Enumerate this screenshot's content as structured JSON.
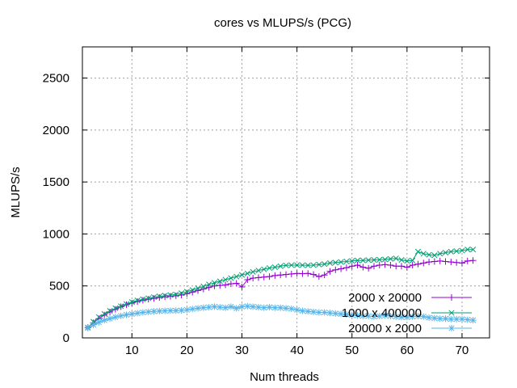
{
  "chart_data": {
    "type": "line",
    "title": "cores vs MLUPS/s (PCG)",
    "xlabel": "Num threads",
    "ylabel": "MLUPS/s",
    "xlim": [
      1,
      75
    ],
    "ylim": [
      0,
      2800
    ],
    "x_ticks": [
      10,
      20,
      30,
      40,
      50,
      60,
      70
    ],
    "y_ticks": [
      0,
      500,
      1000,
      1500,
      2000,
      2500
    ],
    "grid": true,
    "legend_position": "bottom-right",
    "x": [
      2,
      3,
      4,
      5,
      6,
      7,
      8,
      9,
      10,
      11,
      12,
      13,
      14,
      15,
      16,
      17,
      18,
      19,
      20,
      21,
      22,
      23,
      24,
      25,
      26,
      27,
      28,
      29,
      30,
      31,
      32,
      33,
      34,
      35,
      36,
      37,
      38,
      39,
      40,
      41,
      42,
      43,
      44,
      45,
      46,
      47,
      48,
      49,
      50,
      51,
      52,
      53,
      54,
      55,
      56,
      57,
      58,
      59,
      60,
      61,
      62,
      63,
      64,
      65,
      66,
      67,
      68,
      69,
      70,
      71,
      72
    ],
    "series": [
      {
        "name": "2000 x 20000",
        "color": "#9400d3",
        "marker": "plus",
        "values": [
          100,
          145,
          185,
          220,
          250,
          275,
          300,
          320,
          335,
          350,
          362,
          372,
          380,
          388,
          395,
          400,
          405,
          412,
          425,
          440,
          455,
          470,
          485,
          500,
          505,
          510,
          520,
          525,
          490,
          560,
          575,
          580,
          585,
          590,
          600,
          605,
          610,
          615,
          620,
          618,
          620,
          610,
          590,
          605,
          640,
          655,
          665,
          675,
          690,
          700,
          680,
          670,
          690,
          700,
          705,
          700,
          690,
          690,
          680,
          700,
          710,
          720,
          730,
          735,
          740,
          735,
          730,
          725,
          720,
          740,
          745
        ]
      },
      {
        "name": "1000 x 400000",
        "color": "#009e73",
        "marker": "x",
        "values": [
          100,
          155,
          200,
          230,
          260,
          285,
          305,
          325,
          345,
          360,
          372,
          382,
          392,
          400,
          407,
          412,
          418,
          430,
          445,
          460,
          478,
          495,
          515,
          530,
          545,
          560,
          575,
          590,
          605,
          620,
          635,
          648,
          660,
          672,
          680,
          690,
          698,
          700,
          700,
          700,
          698,
          700,
          705,
          710,
          720,
          725,
          730,
          735,
          740,
          745,
          745,
          748,
          750,
          752,
          755,
          760,
          765,
          750,
          740,
          745,
          830,
          810,
          800,
          795,
          810,
          820,
          830,
          835,
          840,
          850,
          850
        ]
      },
      {
        "name": "20000 x 2000",
        "color": "#56b4e9",
        "marker": "star",
        "values": [
          95,
          125,
          150,
          170,
          185,
          200,
          212,
          222,
          230,
          238,
          245,
          250,
          255,
          258,
          260,
          262,
          262,
          265,
          270,
          278,
          285,
          290,
          295,
          300,
          295,
          290,
          300,
          285,
          300,
          305,
          300,
          295,
          290,
          295,
          290,
          290,
          285,
          280,
          270,
          260,
          255,
          250,
          245,
          245,
          240,
          235,
          230,
          225,
          220,
          215,
          210,
          210,
          205,
          210,
          215,
          210,
          205,
          200,
          200,
          205,
          210,
          205,
          195,
          190,
          185,
          185,
          180,
          180,
          180,
          175,
          170
        ]
      }
    ]
  }
}
